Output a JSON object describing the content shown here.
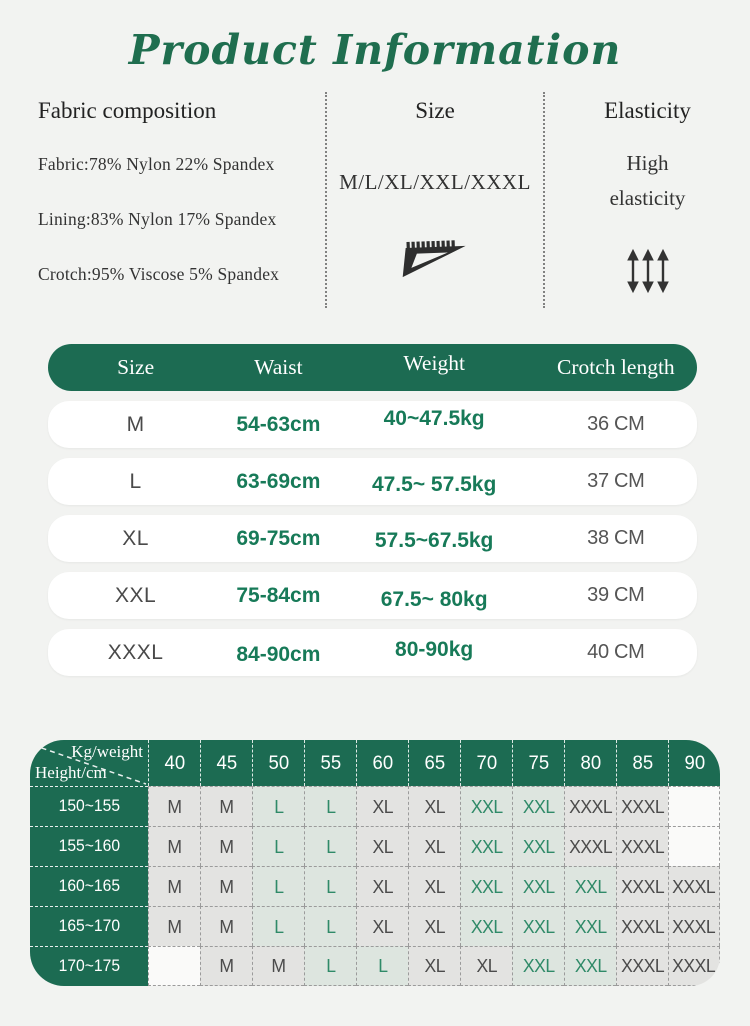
{
  "title": "Product Information",
  "colors": {
    "brand_green": "#1c6b52",
    "title_green": "#1f6e4f",
    "value_green": "#177a58",
    "matrix_cell_green_text": "#2f8a68",
    "matrix_cell_green_bg": "#dde5df",
    "matrix_cell_gray_bg": "#e3e3e1"
  },
  "specs": {
    "fabric": {
      "heading": "Fabric composition",
      "lines": [
        "Fabric:78% Nylon 22% Spandex",
        "Lining:83% Nylon 17% Spandex",
        "Crotch:95% Viscose 5% Spandex"
      ]
    },
    "size": {
      "heading": "Size",
      "range": "M/L/XL/XXL/XXXL",
      "icon": "triangle-ruler-icon"
    },
    "elasticity": {
      "heading": "Elasticity",
      "value_line1": "High",
      "value_line2": "elasticity",
      "icon": "stretch-arrows-icon"
    }
  },
  "size_table": {
    "headers": {
      "size": "Size",
      "waist": "Waist",
      "weight": "Weight",
      "crotch": "Crotch length"
    },
    "rows": [
      {
        "size": "M",
        "waist": "54-63cm",
        "weight": "40~47.5kg",
        "crotch": "36 CM"
      },
      {
        "size": "L",
        "waist": "63-69cm",
        "weight": "47.5~ 57.5kg",
        "crotch": "37 CM"
      },
      {
        "size": "XL",
        "waist": "69-75cm",
        "weight": "57.5~67.5kg",
        "crotch": "38 CM"
      },
      {
        "size": "XXL",
        "waist": "75-84cm",
        "weight": "67.5~ 80kg",
        "crotch": "39 CM"
      },
      {
        "size": "XXXL",
        "waist": "84-90cm",
        "weight": "80-90kg",
        "crotch": "40 CM"
      }
    ]
  },
  "size_matrix": {
    "corner_top_label": "Kg/weight",
    "corner_bottom_label": "Height/cm",
    "weight_columns": [
      "40",
      "45",
      "50",
      "55",
      "60",
      "65",
      "70",
      "75",
      "80",
      "85",
      "90"
    ],
    "rows": [
      {
        "height": "150~155",
        "cells": [
          "M",
          "M",
          "L",
          "L",
          "XL",
          "XL",
          "XXL",
          "XXL",
          "XXXL",
          "XXXL",
          ""
        ]
      },
      {
        "height": "155~160",
        "cells": [
          "M",
          "M",
          "L",
          "L",
          "XL",
          "XL",
          "XXL",
          "XXL",
          "XXXL",
          "XXXL",
          ""
        ]
      },
      {
        "height": "160~165",
        "cells": [
          "M",
          "M",
          "L",
          "L",
          "XL",
          "XL",
          "XXL",
          "XXL",
          "XXL",
          "XXXL",
          "XXXL"
        ]
      },
      {
        "height": "165~170",
        "cells": [
          "M",
          "M",
          "L",
          "L",
          "XL",
          "XL",
          "XXL",
          "XXL",
          "XXL",
          "XXXL",
          "XXXL"
        ]
      },
      {
        "height": "170~175",
        "cells": [
          "",
          "M",
          "M",
          "L",
          "L",
          "XL",
          "XL",
          "XXL",
          "XXL",
          "XXXL",
          "XXXL"
        ]
      }
    ]
  }
}
